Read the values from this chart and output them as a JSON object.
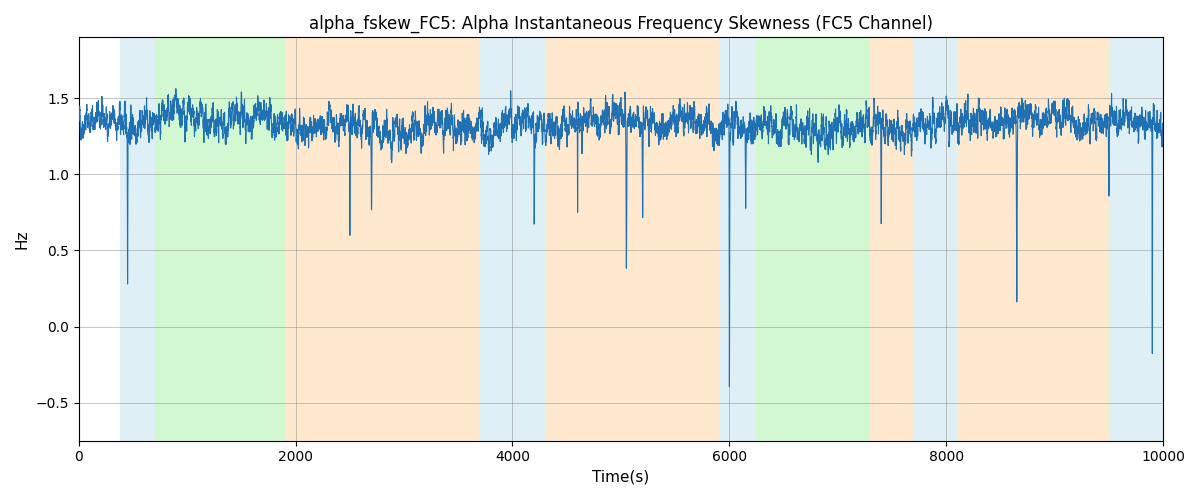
{
  "title": "alpha_fskew_FC5: Alpha Instantaneous Frequency Skewness (FC5 Channel)",
  "xlabel": "Time(s)",
  "ylabel": "Hz",
  "xlim": [
    0,
    10000
  ],
  "ylim": [
    -0.75,
    1.9
  ],
  "line_color": "#2070b4",
  "line_width": 0.8,
  "background_regions": [
    {
      "start": 380,
      "end": 700,
      "color": "#add8e6",
      "alpha": 0.4
    },
    {
      "start": 700,
      "end": 1900,
      "color": "#90ee90",
      "alpha": 0.4
    },
    {
      "start": 1900,
      "end": 3700,
      "color": "#ffd59e",
      "alpha": 0.5
    },
    {
      "start": 3700,
      "end": 4300,
      "color": "#add8e6",
      "alpha": 0.4
    },
    {
      "start": 4300,
      "end": 5900,
      "color": "#ffd59e",
      "alpha": 0.5
    },
    {
      "start": 5900,
      "end": 6250,
      "color": "#add8e6",
      "alpha": 0.4
    },
    {
      "start": 6250,
      "end": 7300,
      "color": "#90ee90",
      "alpha": 0.4
    },
    {
      "start": 7300,
      "end": 7700,
      "color": "#ffd59e",
      "alpha": 0.5
    },
    {
      "start": 7700,
      "end": 8100,
      "color": "#add8e6",
      "alpha": 0.4
    },
    {
      "start": 8100,
      "end": 9500,
      "color": "#ffd59e",
      "alpha": 0.5
    },
    {
      "start": 9500,
      "end": 10000,
      "color": "#add8e6",
      "alpha": 0.4
    }
  ],
  "grid": true,
  "seed": 42,
  "n_points": 10000,
  "base_mean": 1.33,
  "base_std": 0.06,
  "spike_locations": [
    450,
    2500,
    2700,
    4200,
    4600,
    5050,
    5200,
    6000,
    6150,
    7400,
    8650,
    9500,
    9900
  ],
  "spike_depths": [
    -0.95,
    -0.75,
    -0.6,
    -0.55,
    -0.65,
    -1.0,
    -0.6,
    -1.7,
    -0.5,
    -0.7,
    -1.1,
    -0.55,
    -1.55
  ]
}
